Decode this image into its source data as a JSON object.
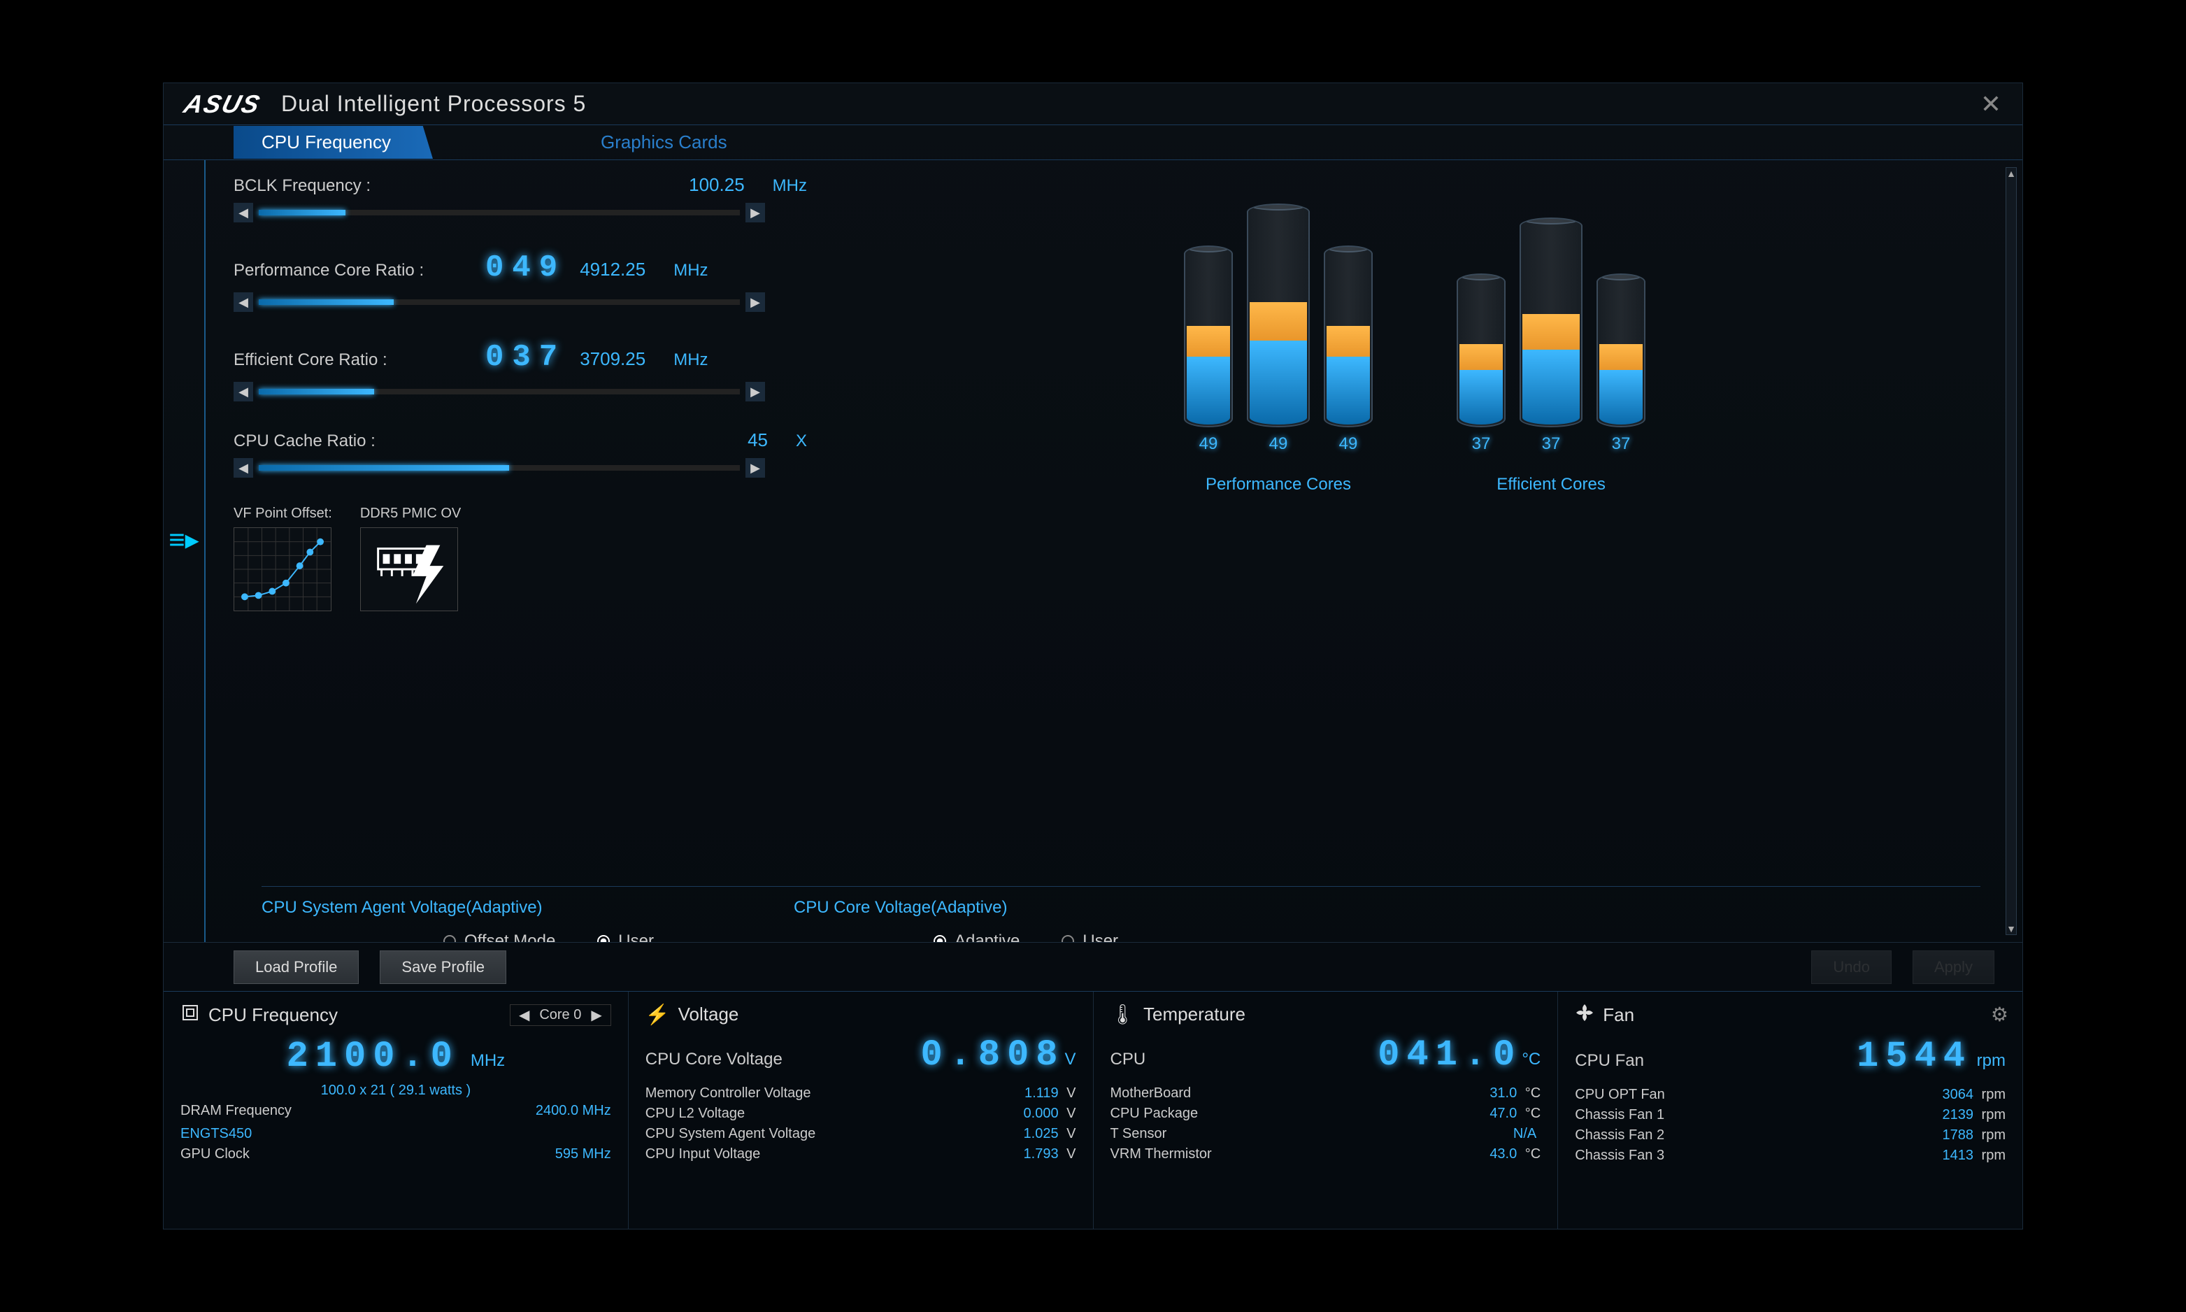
{
  "brand": "ASUS",
  "app_title": "Dual Intelligent Processors 5",
  "tabs": {
    "cpu_freq": "CPU Frequency",
    "gpu": "Graphics Cards"
  },
  "sliders": {
    "bclk": {
      "label": "BCLK Frequency :",
      "value": "100.25",
      "unit": "MHz",
      "fill_pct": 18
    },
    "pcore": {
      "label": "Performance Core Ratio :",
      "digital": "049",
      "value": "4912.25",
      "unit": "MHz",
      "fill_pct": 28
    },
    "ecore": {
      "label": "Efficient Core Ratio :",
      "digital": "037",
      "value": "3709.25",
      "unit": "MHz",
      "fill_pct": 24
    },
    "cache": {
      "label": "CPU Cache Ratio :",
      "value": "45",
      "unit": "X",
      "fill_pct": 52
    }
  },
  "icons": {
    "vf": "VF Point Offset:",
    "ddr5": "DDR5 PMIC OV"
  },
  "cores": {
    "perf": {
      "label": "Performance Cores",
      "vals": [
        "49",
        "49",
        "49"
      ],
      "heights": [
        260,
        320,
        260
      ],
      "fill1": 38,
      "fill2": 18
    },
    "eff": {
      "label": "Efficient Cores",
      "vals": [
        "37",
        "37",
        "37"
      ],
      "heights": [
        220,
        300,
        220
      ],
      "fill1": 36,
      "fill2": 18
    }
  },
  "voltage_sections": {
    "sys_agent": "CPU System Agent Voltage(Adaptive)",
    "core": "CPU Core Voltage(Adaptive)",
    "offset_mode": "Offset Mode",
    "user": "User",
    "adaptive": "Adaptive"
  },
  "buttons": {
    "load": "Load Profile",
    "save": "Save Profile",
    "undo": "Undo",
    "apply": "Apply"
  },
  "status": {
    "cpu_freq": {
      "title": "CPU Frequency",
      "core_sel": "Core 0",
      "main": "2100.0",
      "main_unit": "MHz",
      "sub": "100.0  x  21    ( 29.1   watts )",
      "dram_label": "DRAM Frequency",
      "dram_val": "2400.0  MHz",
      "gpu_name": "ENGTS450",
      "gpu_clock_label": "GPU Clock",
      "gpu_clock_val": "595 MHz"
    },
    "voltage": {
      "title": "Voltage",
      "core_label": "CPU Core Voltage",
      "core_val": "0.808",
      "core_unit": "V",
      "rows": [
        {
          "k": "Memory Controller Voltage",
          "v": "1.119",
          "u": "V"
        },
        {
          "k": "CPU L2 Voltage",
          "v": "0.000",
          "u": "V"
        },
        {
          "k": "CPU System Agent Voltage",
          "v": "1.025",
          "u": "V"
        },
        {
          "k": "CPU Input Voltage",
          "v": "1.793",
          "u": "V"
        }
      ]
    },
    "temp": {
      "title": "Temperature",
      "cpu_label": "CPU",
      "cpu_val": "041.0",
      "cpu_unit": "°C",
      "rows": [
        {
          "k": "MotherBoard",
          "v": "31.0",
          "u": "°C"
        },
        {
          "k": "CPU Package",
          "v": "47.0",
          "u": "°C"
        },
        {
          "k": "T Sensor",
          "v": "N/A",
          "u": ""
        },
        {
          "k": "VRM Thermistor",
          "v": "43.0",
          "u": "°C"
        }
      ]
    },
    "fan": {
      "title": "Fan",
      "main_label": "CPU Fan",
      "main_val": "1544",
      "main_unit": "rpm",
      "rows": [
        {
          "k": "CPU OPT Fan",
          "v": "3064",
          "u": "rpm"
        },
        {
          "k": "Chassis Fan 1",
          "v": "2139",
          "u": "rpm"
        },
        {
          "k": "Chassis Fan 2",
          "v": "1788",
          "u": "rpm"
        },
        {
          "k": "Chassis Fan 3",
          "v": "1413",
          "u": "rpm"
        }
      ]
    }
  },
  "colors": {
    "accent": "#3db8ff",
    "orange": "#ffb84a"
  }
}
